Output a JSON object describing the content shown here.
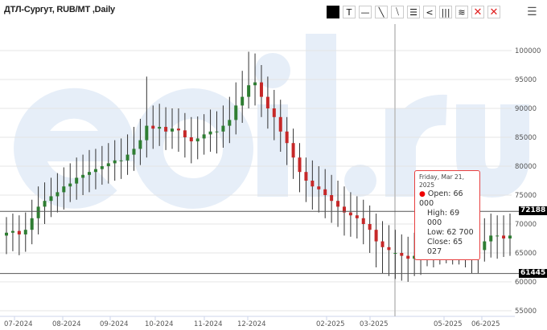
{
  "header": {
    "title": "ДТЛ-Сургут, RUB/MT ,Daily"
  },
  "toolbar": [
    {
      "name": "color-swatch",
      "glyph": ""
    },
    {
      "name": "text-tool",
      "glyph": "T"
    },
    {
      "name": "horizontal-line-tool",
      "glyph": "—"
    },
    {
      "name": "trend-line-tool",
      "glyph": "╲"
    },
    {
      "name": "parallel-lines-tool",
      "glyph": "⧹"
    },
    {
      "name": "horizontal-lines-tool",
      "glyph": "☰"
    },
    {
      "name": "fan-tool",
      "glyph": "<"
    },
    {
      "name": "vertical-lines-tool",
      "glyph": "|||"
    },
    {
      "name": "fibonacci-tool",
      "glyph": "≋"
    },
    {
      "name": "delete-selected",
      "glyph": "✕"
    },
    {
      "name": "delete-all",
      "glyph": "✕"
    }
  ],
  "menu_icon": "hamburger-icon",
  "watermark": "eoil.ru",
  "tooltip": {
    "date": "Friday, Mar 21, 2025",
    "open": "Open: 66 000",
    "high": "High: 69 000",
    "low": "Low: 62 700",
    "close": "Close: 65 027"
  },
  "levels": [
    {
      "label": "72188",
      "value": 72188
    },
    {
      "label": "61445",
      "value": 61445
    }
  ],
  "colors": {
    "up": "#2e7d32",
    "down": "#c62828",
    "wick": "#333333",
    "level": "#555555",
    "tooltip_border": "#e84040",
    "watermark": "#e6eef8"
  },
  "chart_data": {
    "type": "candlestick",
    "title": "ДТЛ-Сургут, RUB/MT ,Daily",
    "xlabel": "",
    "ylabel": "",
    "ylim": [
      55000,
      100000
    ],
    "y_ticks": [
      100000,
      95000,
      90000,
      85000,
      80000,
      75000,
      70000,
      65000,
      60000,
      55000
    ],
    "x_ticks": [
      "07-2024",
      "08-2024",
      "09-2024",
      "10-2024",
      "11-2024",
      "12-2024",
      "02-2025",
      "03-2025",
      "05-2025",
      "06-2025"
    ],
    "grid": "horizontal",
    "ohlc": [
      [
        68000,
        71200,
        64800,
        68500
      ],
      [
        68500,
        71800,
        65300,
        68800
      ],
      [
        68800,
        71500,
        64600,
        68200
      ],
      [
        68200,
        72000,
        65200,
        69000
      ],
      [
        69000,
        74200,
        66500,
        71000
      ],
      [
        71000,
        76500,
        68200,
        73000
      ],
      [
        73000,
        77200,
        70000,
        74000
      ],
      [
        74000,
        78000,
        71200,
        74800
      ],
      [
        74800,
        78800,
        72000,
        75500
      ],
      [
        75500,
        79800,
        72500,
        76500
      ],
      [
        76500,
        80500,
        73800,
        77000
      ],
      [
        77000,
        81500,
        74200,
        78000
      ],
      [
        78000,
        82000,
        75000,
        78500
      ],
      [
        78500,
        82800,
        75500,
        79000
      ],
      [
        79000,
        83000,
        76000,
        79500
      ],
      [
        79500,
        83500,
        76800,
        80000
      ],
      [
        80000,
        84000,
        77000,
        80500
      ],
      [
        80500,
        84500,
        77500,
        81000
      ],
      [
        81000,
        84800,
        77800,
        81000
      ],
      [
        81000,
        85500,
        78500,
        82000
      ],
      [
        82000,
        86800,
        79200,
        83000
      ],
      [
        83000,
        88200,
        80200,
        84500
      ],
      [
        84500,
        95500,
        81500,
        87000
      ],
      [
        87000,
        90500,
        83000,
        86500
      ],
      [
        86500,
        90800,
        83500,
        86800
      ],
      [
        86800,
        90200,
        82800,
        86000
      ],
      [
        86000,
        90000,
        83000,
        86500
      ],
      [
        86500,
        90000,
        82500,
        86200
      ],
      [
        86200,
        89200,
        81500,
        85000
      ],
      [
        85000,
        88500,
        80500,
        84300
      ],
      [
        84300,
        88600,
        81200,
        84800
      ],
      [
        84800,
        89000,
        82000,
        85500
      ],
      [
        85500,
        89800,
        82500,
        86000
      ],
      [
        86000,
        89500,
        82200,
        86000
      ],
      [
        86000,
        90500,
        83200,
        87000
      ],
      [
        87000,
        92000,
        84000,
        88000
      ],
      [
        88000,
        94500,
        85500,
        90500
      ],
      [
        90500,
        96500,
        87500,
        92000
      ],
      [
        92000,
        99800,
        90000,
        94000
      ],
      [
        94000,
        99500,
        90500,
        94500
      ],
      [
        94500,
        97500,
        88500,
        92000
      ],
      [
        92000,
        95500,
        86500,
        90000
      ],
      [
        90000,
        93200,
        84500,
        88500
      ],
      [
        88500,
        91500,
        82500,
        86000
      ],
      [
        86000,
        88500,
        80200,
        84000
      ],
      [
        84000,
        86500,
        77800,
        81500
      ],
      [
        81500,
        84000,
        75500,
        79000
      ],
      [
        79000,
        81500,
        73800,
        77500
      ],
      [
        77500,
        81000,
        72500,
        76500
      ],
      [
        76500,
        80000,
        72000,
        76000
      ],
      [
        76000,
        79500,
        71000,
        75000
      ],
      [
        75000,
        78500,
        70200,
        74000
      ],
      [
        74000,
        77500,
        69500,
        73000
      ],
      [
        73000,
        76500,
        68000,
        72000
      ],
      [
        72000,
        75500,
        67800,
        71500
      ],
      [
        71500,
        74800,
        67500,
        71000
      ],
      [
        71000,
        74200,
        66500,
        70000
      ],
      [
        70000,
        73200,
        65000,
        69000
      ],
      [
        69000,
        71800,
        62500,
        67000
      ],
      [
        67000,
        70500,
        61500,
        66000
      ],
      [
        66000,
        69800,
        61000,
        65500
      ],
      [
        65000,
        69000,
        60500,
        65000
      ],
      [
        65000,
        68200,
        60200,
        64500
      ],
      [
        64500,
        67800,
        60000,
        64000
      ],
      [
        64000,
        68500,
        61000,
        64500
      ],
      [
        64500,
        69000,
        61200,
        65000
      ],
      [
        66000,
        69000,
        62700,
        65027
      ],
      [
        65000,
        70500,
        62500,
        66500
      ],
      [
        66500,
        71000,
        63000,
        67000
      ],
      [
        67000,
        71200,
        63200,
        67500
      ],
      [
        67500,
        71000,
        63000,
        67000
      ],
      [
        67000,
        70800,
        63000,
        67000
      ],
      [
        67000,
        70500,
        62500,
        66500
      ],
      [
        66500,
        70000,
        61500,
        66000
      ],
      [
        66000,
        69500,
        61500,
        65500
      ],
      [
        65500,
        71000,
        63500,
        67000
      ],
      [
        67000,
        71800,
        64200,
        68000
      ],
      [
        68000,
        71500,
        64000,
        68000
      ],
      [
        68000,
        71500,
        64300,
        67500
      ],
      [
        67500,
        71800,
        64500,
        68000
      ]
    ]
  }
}
